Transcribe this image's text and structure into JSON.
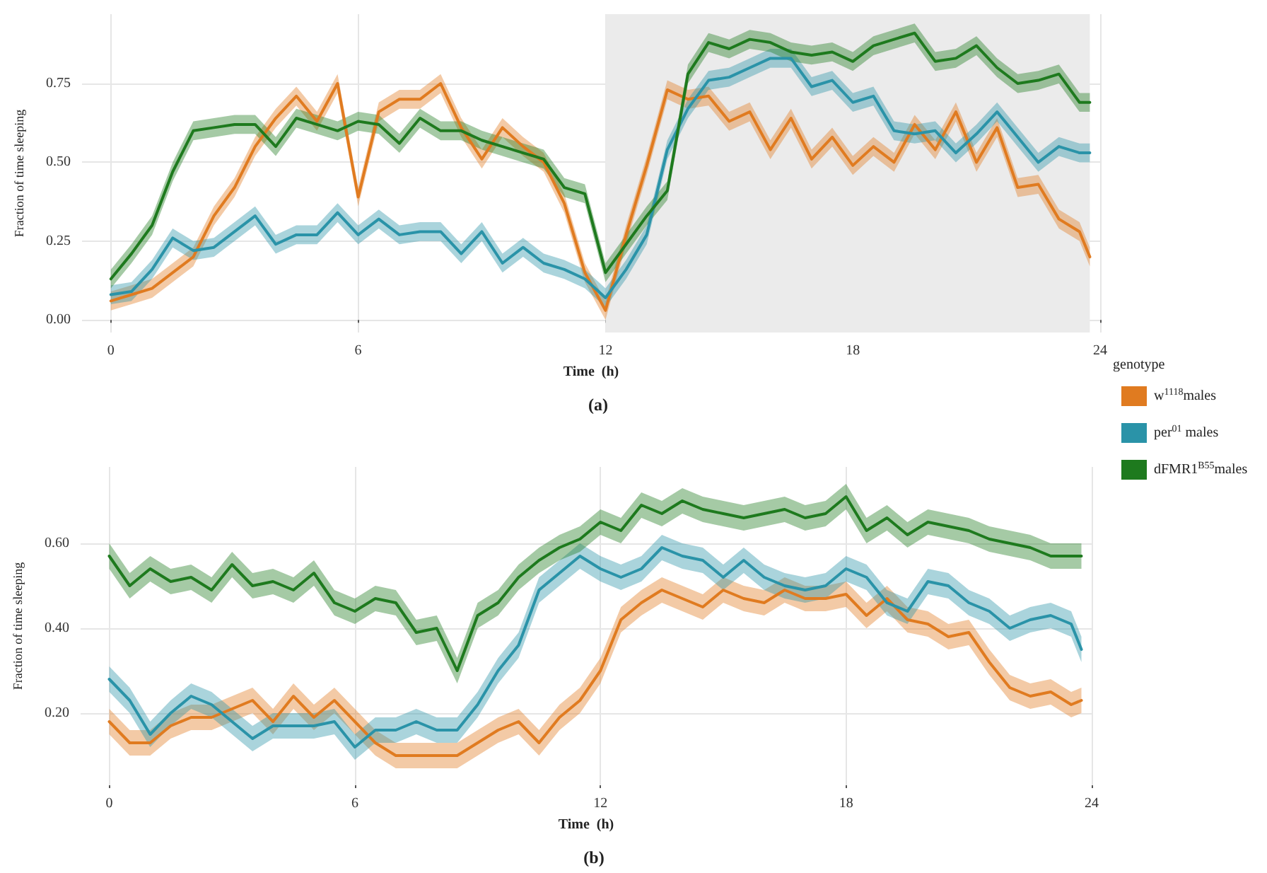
{
  "chart_data": [
    {
      "type": "line",
      "title": "(a)",
      "xlabel": "Time  (h)",
      "ylabel": "Fraction of time sleeping",
      "legend_title": "genotype",
      "legend": "bottom right",
      "grid": true,
      "line_style": "solid",
      "xlim": [
        -0.7,
        24
      ],
      "xticks": [
        0,
        6,
        12,
        18,
        24
      ],
      "ylim": [
        -0.04,
        0.97
      ],
      "yticks": [
        {
          "value": 0,
          "label": "0.00"
        },
        {
          "value": 0.25,
          "label": "0.25"
        },
        {
          "value": 0.5,
          "label": "0.50"
        },
        {
          "value": 0.75,
          "label": "0.75"
        }
      ],
      "bands": [
        {
          "axis": "x",
          "from": 12,
          "to": 23.75,
          "color": "#ebebeb"
        }
      ],
      "x": [
        0,
        0.5,
        1,
        1.5,
        2,
        2.5,
        3,
        3.5,
        4,
        4.5,
        5,
        5.5,
        6,
        6.5,
        7,
        7.5,
        8,
        8.5,
        9,
        9.5,
        10,
        10.5,
        11,
        11.5,
        12,
        12.5,
        13,
        13.5,
        14,
        14.5,
        15,
        15.5,
        16,
        16.5,
        17,
        17.5,
        18,
        18.5,
        19,
        19.5,
        20,
        20.5,
        21,
        21.5,
        22,
        22.5,
        23,
        23.5,
        23.75
      ],
      "series": [
        {
          "name": "w$^{1118}$males",
          "color": "#e07b20",
          "values": [
            0.06,
            0.08,
            0.1,
            0.15,
            0.2,
            0.33,
            0.42,
            0.55,
            0.64,
            0.71,
            0.63,
            0.75,
            0.39,
            0.66,
            0.7,
            0.7,
            0.75,
            0.61,
            0.51,
            0.61,
            0.55,
            0.5,
            0.37,
            0.15,
            0.03,
            0.27,
            0.49,
            0.73,
            0.7,
            0.71,
            0.63,
            0.66,
            0.54,
            0.64,
            0.51,
            0.58,
            0.49,
            0.55,
            0.5,
            0.62,
            0.54,
            0.66,
            0.5,
            0.61,
            0.42,
            0.43,
            0.32,
            0.28,
            0.2
          ],
          "lower": [
            0.03,
            0.05,
            0.07,
            0.12,
            0.17,
            0.3,
            0.39,
            0.52,
            0.61,
            0.68,
            0.6,
            0.72,
            0.36,
            0.63,
            0.67,
            0.67,
            0.72,
            0.58,
            0.48,
            0.58,
            0.52,
            0.47,
            0.34,
            0.12,
            0.0,
            0.24,
            0.46,
            0.7,
            0.67,
            0.68,
            0.6,
            0.63,
            0.51,
            0.61,
            0.48,
            0.55,
            0.46,
            0.52,
            0.47,
            0.59,
            0.51,
            0.63,
            0.47,
            0.58,
            0.39,
            0.4,
            0.29,
            0.25,
            0.17
          ],
          "upper": [
            0.09,
            0.11,
            0.13,
            0.18,
            0.23,
            0.36,
            0.45,
            0.58,
            0.67,
            0.74,
            0.66,
            0.78,
            0.42,
            0.69,
            0.73,
            0.73,
            0.78,
            0.64,
            0.54,
            0.64,
            0.58,
            0.53,
            0.4,
            0.18,
            0.06,
            0.3,
            0.52,
            0.76,
            0.73,
            0.74,
            0.66,
            0.69,
            0.57,
            0.67,
            0.54,
            0.61,
            0.52,
            0.58,
            0.53,
            0.65,
            0.57,
            0.69,
            0.53,
            0.64,
            0.45,
            0.46,
            0.35,
            0.31,
            0.23
          ]
        },
        {
          "name": "per$^{01}$ males",
          "color": "#2a93a8",
          "values": [
            0.08,
            0.09,
            0.16,
            0.26,
            0.22,
            0.23,
            0.28,
            0.33,
            0.24,
            0.27,
            0.27,
            0.34,
            0.27,
            0.32,
            0.27,
            0.28,
            0.28,
            0.21,
            0.28,
            0.18,
            0.23,
            0.18,
            0.16,
            0.13,
            0.07,
            0.16,
            0.27,
            0.54,
            0.67,
            0.76,
            0.77,
            0.8,
            0.83,
            0.83,
            0.74,
            0.76,
            0.69,
            0.71,
            0.6,
            0.59,
            0.6,
            0.53,
            0.59,
            0.66,
            0.58,
            0.5,
            0.55,
            0.53,
            0.53
          ],
          "lower": [
            0.05,
            0.06,
            0.13,
            0.23,
            0.19,
            0.2,
            0.25,
            0.3,
            0.21,
            0.24,
            0.24,
            0.31,
            0.24,
            0.29,
            0.24,
            0.25,
            0.25,
            0.18,
            0.25,
            0.15,
            0.2,
            0.15,
            0.13,
            0.1,
            0.04,
            0.13,
            0.24,
            0.51,
            0.64,
            0.73,
            0.74,
            0.77,
            0.8,
            0.8,
            0.71,
            0.73,
            0.66,
            0.68,
            0.57,
            0.56,
            0.57,
            0.5,
            0.56,
            0.63,
            0.55,
            0.47,
            0.52,
            0.5,
            0.5
          ],
          "upper": [
            0.11,
            0.12,
            0.19,
            0.29,
            0.25,
            0.26,
            0.31,
            0.36,
            0.27,
            0.3,
            0.3,
            0.37,
            0.3,
            0.35,
            0.3,
            0.31,
            0.31,
            0.24,
            0.31,
            0.21,
            0.26,
            0.21,
            0.19,
            0.16,
            0.1,
            0.19,
            0.3,
            0.57,
            0.7,
            0.79,
            0.8,
            0.83,
            0.86,
            0.86,
            0.77,
            0.79,
            0.72,
            0.74,
            0.63,
            0.62,
            0.63,
            0.56,
            0.62,
            0.69,
            0.61,
            0.53,
            0.58,
            0.56,
            0.56
          ]
        },
        {
          "name": "dFMR1$^{B55}$males",
          "color": "#1e7a1e",
          "values": [
            0.13,
            0.21,
            0.3,
            0.47,
            0.6,
            0.61,
            0.62,
            0.62,
            0.55,
            0.64,
            0.62,
            0.6,
            0.63,
            0.62,
            0.56,
            0.64,
            0.6,
            0.6,
            0.57,
            0.55,
            0.53,
            0.51,
            0.42,
            0.4,
            0.15,
            0.24,
            0.33,
            0.41,
            0.78,
            0.88,
            0.86,
            0.89,
            0.88,
            0.85,
            0.84,
            0.85,
            0.82,
            0.87,
            0.89,
            0.91,
            0.82,
            0.83,
            0.87,
            0.8,
            0.75,
            0.76,
            0.78,
            0.69,
            0.69
          ],
          "lower": [
            0.1,
            0.18,
            0.27,
            0.44,
            0.57,
            0.58,
            0.59,
            0.59,
            0.52,
            0.61,
            0.59,
            0.57,
            0.6,
            0.59,
            0.53,
            0.61,
            0.57,
            0.57,
            0.54,
            0.52,
            0.5,
            0.48,
            0.39,
            0.37,
            0.12,
            0.21,
            0.3,
            0.38,
            0.75,
            0.85,
            0.83,
            0.86,
            0.85,
            0.82,
            0.81,
            0.82,
            0.79,
            0.84,
            0.86,
            0.88,
            0.79,
            0.8,
            0.84,
            0.77,
            0.72,
            0.73,
            0.75,
            0.66,
            0.66
          ],
          "upper": [
            0.16,
            0.24,
            0.33,
            0.5,
            0.63,
            0.64,
            0.65,
            0.65,
            0.58,
            0.67,
            0.65,
            0.63,
            0.66,
            0.65,
            0.59,
            0.67,
            0.63,
            0.63,
            0.6,
            0.58,
            0.56,
            0.54,
            0.45,
            0.43,
            0.18,
            0.27,
            0.36,
            0.44,
            0.81,
            0.91,
            0.89,
            0.92,
            0.91,
            0.88,
            0.87,
            0.88,
            0.85,
            0.9,
            0.92,
            0.94,
            0.85,
            0.86,
            0.9,
            0.83,
            0.78,
            0.79,
            0.81,
            0.72,
            0.72
          ]
        }
      ]
    },
    {
      "type": "line",
      "title": "(b)",
      "xlabel": "Time  (h)",
      "ylabel": "Fraction of time sleeping",
      "grid": true,
      "line_style": "solid",
      "xlim": [
        -0.7,
        24
      ],
      "xticks": [
        0,
        6,
        12,
        18,
        24
      ],
      "ylim": [
        0.03,
        0.78
      ],
      "yticks": [
        {
          "value": 0.2,
          "label": "0.20"
        },
        {
          "value": 0.4,
          "label": "0.40"
        },
        {
          "value": 0.6,
          "label": "0.60"
        }
      ],
      "x": [
        0,
        0.5,
        1,
        1.5,
        2,
        2.5,
        3,
        3.5,
        4,
        4.5,
        5,
        5.5,
        6,
        6.5,
        7,
        7.5,
        8,
        8.5,
        9,
        9.5,
        10,
        10.5,
        11,
        11.5,
        12,
        12.5,
        13,
        13.5,
        14,
        14.5,
        15,
        15.5,
        16,
        16.5,
        17,
        17.5,
        18,
        18.5,
        19,
        19.5,
        20,
        20.5,
        21,
        21.5,
        22,
        22.5,
        23,
        23.5,
        23.75
      ],
      "series": [
        {
          "color": "#e07b20",
          "values": [
            0.18,
            0.13,
            0.13,
            0.17,
            0.19,
            0.19,
            0.21,
            0.23,
            0.18,
            0.24,
            0.19,
            0.23,
            0.18,
            0.13,
            0.1,
            0.1,
            0.1,
            0.1,
            0.13,
            0.16,
            0.18,
            0.13,
            0.19,
            0.23,
            0.3,
            0.42,
            0.46,
            0.49,
            0.47,
            0.45,
            0.49,
            0.47,
            0.46,
            0.49,
            0.47,
            0.47,
            0.48,
            0.43,
            0.47,
            0.42,
            0.41,
            0.38,
            0.39,
            0.32,
            0.26,
            0.24,
            0.25,
            0.22,
            0.23
          ],
          "lower": [
            0.15,
            0.1,
            0.1,
            0.14,
            0.16,
            0.16,
            0.18,
            0.2,
            0.15,
            0.21,
            0.16,
            0.2,
            0.15,
            0.1,
            0.07,
            0.07,
            0.07,
            0.07,
            0.1,
            0.13,
            0.15,
            0.1,
            0.16,
            0.2,
            0.27,
            0.39,
            0.43,
            0.46,
            0.44,
            0.42,
            0.46,
            0.44,
            0.43,
            0.46,
            0.44,
            0.44,
            0.45,
            0.4,
            0.44,
            0.39,
            0.38,
            0.35,
            0.36,
            0.29,
            0.23,
            0.21,
            0.22,
            0.19,
            0.2
          ],
          "upper": [
            0.21,
            0.16,
            0.16,
            0.2,
            0.22,
            0.22,
            0.24,
            0.26,
            0.21,
            0.27,
            0.22,
            0.26,
            0.21,
            0.16,
            0.13,
            0.13,
            0.13,
            0.13,
            0.16,
            0.19,
            0.21,
            0.16,
            0.22,
            0.26,
            0.33,
            0.45,
            0.49,
            0.52,
            0.5,
            0.48,
            0.52,
            0.5,
            0.49,
            0.52,
            0.5,
            0.5,
            0.51,
            0.46,
            0.5,
            0.45,
            0.44,
            0.41,
            0.42,
            0.35,
            0.29,
            0.27,
            0.28,
            0.25,
            0.26
          ]
        },
        {
          "color": "#2a93a8",
          "values": [
            0.28,
            0.23,
            0.15,
            0.2,
            0.24,
            0.22,
            0.18,
            0.14,
            0.17,
            0.17,
            0.17,
            0.18,
            0.12,
            0.16,
            0.16,
            0.18,
            0.16,
            0.16,
            0.22,
            0.3,
            0.36,
            0.49,
            0.53,
            0.57,
            0.54,
            0.52,
            0.54,
            0.59,
            0.57,
            0.56,
            0.52,
            0.56,
            0.52,
            0.5,
            0.49,
            0.5,
            0.54,
            0.52,
            0.46,
            0.44,
            0.51,
            0.5,
            0.46,
            0.44,
            0.4,
            0.42,
            0.43,
            0.41,
            0.35
          ],
          "lower": [
            0.25,
            0.2,
            0.12,
            0.17,
            0.21,
            0.19,
            0.15,
            0.11,
            0.14,
            0.14,
            0.14,
            0.15,
            0.09,
            0.13,
            0.13,
            0.15,
            0.13,
            0.13,
            0.19,
            0.27,
            0.33,
            0.46,
            0.5,
            0.54,
            0.51,
            0.49,
            0.51,
            0.56,
            0.54,
            0.53,
            0.49,
            0.53,
            0.49,
            0.47,
            0.46,
            0.47,
            0.51,
            0.49,
            0.43,
            0.41,
            0.48,
            0.47,
            0.43,
            0.41,
            0.37,
            0.39,
            0.4,
            0.38,
            0.32
          ],
          "upper": [
            0.31,
            0.26,
            0.18,
            0.23,
            0.27,
            0.25,
            0.21,
            0.17,
            0.2,
            0.2,
            0.2,
            0.21,
            0.15,
            0.19,
            0.19,
            0.21,
            0.19,
            0.19,
            0.25,
            0.33,
            0.39,
            0.52,
            0.56,
            0.6,
            0.57,
            0.55,
            0.57,
            0.62,
            0.6,
            0.59,
            0.55,
            0.59,
            0.55,
            0.53,
            0.52,
            0.53,
            0.57,
            0.55,
            0.49,
            0.47,
            0.54,
            0.53,
            0.49,
            0.47,
            0.43,
            0.45,
            0.46,
            0.44,
            0.38
          ]
        },
        {
          "color": "#1e7a1e",
          "values": [
            0.57,
            0.5,
            0.54,
            0.51,
            0.52,
            0.49,
            0.55,
            0.5,
            0.51,
            0.49,
            0.53,
            0.46,
            0.44,
            0.47,
            0.46,
            0.39,
            0.4,
            0.3,
            0.43,
            0.46,
            0.52,
            0.56,
            0.59,
            0.61,
            0.65,
            0.63,
            0.69,
            0.67,
            0.7,
            0.68,
            0.67,
            0.66,
            0.67,
            0.68,
            0.66,
            0.67,
            0.71,
            0.63,
            0.66,
            0.62,
            0.65,
            0.64,
            0.63,
            0.61,
            0.6,
            0.59,
            0.57,
            0.57,
            0.57
          ],
          "lower": [
            0.54,
            0.47,
            0.51,
            0.48,
            0.49,
            0.46,
            0.52,
            0.47,
            0.48,
            0.46,
            0.5,
            0.43,
            0.41,
            0.44,
            0.43,
            0.36,
            0.37,
            0.27,
            0.4,
            0.43,
            0.49,
            0.53,
            0.56,
            0.58,
            0.62,
            0.6,
            0.66,
            0.64,
            0.67,
            0.65,
            0.64,
            0.63,
            0.64,
            0.65,
            0.63,
            0.64,
            0.68,
            0.6,
            0.63,
            0.59,
            0.62,
            0.61,
            0.6,
            0.58,
            0.57,
            0.56,
            0.54,
            0.54,
            0.54
          ],
          "upper": [
            0.6,
            0.53,
            0.57,
            0.54,
            0.55,
            0.52,
            0.58,
            0.53,
            0.54,
            0.52,
            0.56,
            0.49,
            0.47,
            0.5,
            0.49,
            0.42,
            0.43,
            0.33,
            0.46,
            0.49,
            0.55,
            0.59,
            0.62,
            0.64,
            0.68,
            0.66,
            0.72,
            0.7,
            0.73,
            0.71,
            0.7,
            0.69,
            0.7,
            0.71,
            0.69,
            0.7,
            0.74,
            0.66,
            0.69,
            0.65,
            0.68,
            0.67,
            0.66,
            0.64,
            0.63,
            0.62,
            0.6,
            0.6,
            0.6
          ]
        }
      ]
    }
  ]
}
